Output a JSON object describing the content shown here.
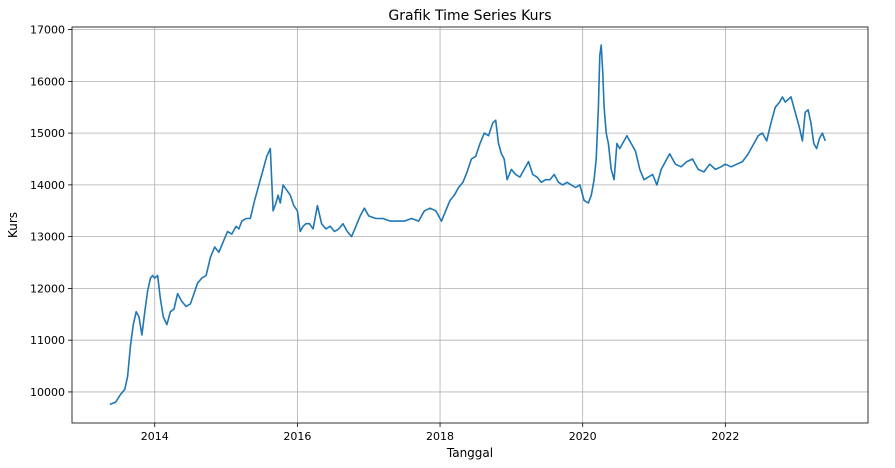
{
  "chart_data": {
    "type": "line",
    "title": "Grafik Time Series Kurs",
    "xlabel": "Tanggal",
    "ylabel": "Kurs",
    "xlim": [
      2012.84,
      2024.0
    ],
    "ylim": [
      9400,
      17050
    ],
    "x_ticks": [
      2014,
      2016,
      2018,
      2020,
      2022
    ],
    "x_tick_labels": [
      "2014",
      "2016",
      "2018",
      "2020",
      "2022"
    ],
    "y_ticks": [
      10000,
      11000,
      12000,
      13000,
      14000,
      15000,
      16000,
      17000
    ],
    "y_tick_labels": [
      "10000",
      "11000",
      "12000",
      "13000",
      "14000",
      "15000",
      "16000",
      "17000"
    ],
    "grid": true,
    "series_color": "#1f77b4",
    "series": [
      {
        "x": [
          2013.37,
          2013.45,
          2013.52,
          2013.58,
          2013.62,
          2013.66,
          2013.7,
          2013.74,
          2013.78,
          2013.82,
          2013.86,
          2013.9,
          2013.94,
          2013.97,
          2014.0,
          2014.04,
          2014.08,
          2014.12,
          2014.17,
          2014.22,
          2014.27,
          2014.32,
          2014.38,
          2014.44,
          2014.5,
          2014.55,
          2014.6,
          2014.66,
          2014.72,
          2014.78,
          2014.84,
          2014.9,
          2014.96,
          2015.02,
          2015.08,
          2015.14,
          2015.18,
          2015.22,
          2015.28,
          2015.34,
          2015.4,
          2015.46,
          2015.52,
          2015.57,
          2015.62,
          2015.66,
          2015.7,
          2015.73,
          2015.76,
          2015.8,
          2015.85,
          2015.9,
          2015.95,
          2016.0,
          2016.04,
          2016.08,
          2016.12,
          2016.17,
          2016.22,
          2016.28,
          2016.34,
          2016.4,
          2016.46,
          2016.52,
          2016.58,
          2016.64,
          2016.7,
          2016.76,
          2016.82,
          2016.88,
          2016.94,
          2017.0,
          2017.1,
          2017.2,
          2017.3,
          2017.4,
          2017.5,
          2017.6,
          2017.7,
          2017.78,
          2017.86,
          2017.94,
          2018.02,
          2018.08,
          2018.14,
          2018.2,
          2018.26,
          2018.32,
          2018.38,
          2018.44,
          2018.5,
          2018.56,
          2018.62,
          2018.68,
          2018.74,
          2018.78,
          2018.82,
          2018.86,
          2018.9,
          2018.94,
          2019.0,
          2019.06,
          2019.12,
          2019.18,
          2019.24,
          2019.3,
          2019.36,
          2019.42,
          2019.48,
          2019.54,
          2019.6,
          2019.66,
          2019.72,
          2019.78,
          2019.84,
          2019.9,
          2019.96,
          2020.02,
          2020.08,
          2020.12,
          2020.16,
          2020.19,
          2020.22,
          2020.24,
          2020.26,
          2020.28,
          2020.3,
          2020.33,
          2020.36,
          2020.4,
          2020.44,
          2020.48,
          2020.52,
          2020.56,
          2020.62,
          2020.68,
          2020.74,
          2020.8,
          2020.86,
          2020.92,
          2020.98,
          2021.04,
          2021.1,
          2021.16,
          2021.22,
          2021.3,
          2021.38,
          2021.46,
          2021.54,
          2021.62,
          2021.7,
          2021.78,
          2021.86,
          2021.94,
          2022.0,
          2022.08,
          2022.16,
          2022.24,
          2022.32,
          2022.4,
          2022.46,
          2022.52,
          2022.58,
          2022.64,
          2022.7,
          2022.76,
          2022.8,
          2022.84,
          2022.88,
          2022.92,
          2022.96,
          2023.0,
          2023.04,
          2023.08,
          2023.12,
          2023.16,
          2023.2,
          2023.24,
          2023.28,
          2023.32,
          2023.36,
          2023.4
        ],
        "y": [
          9760,
          9800,
          9950,
          10050,
          10300,
          10900,
          11300,
          11550,
          11450,
          11100,
          11550,
          11950,
          12200,
          12250,
          12200,
          12250,
          11800,
          11450,
          11300,
          11550,
          11600,
          11900,
          11750,
          11650,
          11700,
          11900,
          12100,
          12200,
          12250,
          12600,
          12800,
          12700,
          12900,
          13100,
          13050,
          13200,
          13150,
          13300,
          13350,
          13350,
          13700,
          14000,
          14300,
          14550,
          14700,
          13500,
          13650,
          13800,
          13650,
          14000,
          13900,
          13800,
          13600,
          13500,
          13100,
          13200,
          13250,
          13250,
          13150,
          13600,
          13250,
          13150,
          13200,
          13100,
          13150,
          13250,
          13100,
          13000,
          13200,
          13400,
          13550,
          13400,
          13350,
          13350,
          13300,
          13300,
          13300,
          13350,
          13300,
          13500,
          13550,
          13500,
          13300,
          13500,
          13700,
          13800,
          13950,
          14050,
          14250,
          14500,
          14550,
          14800,
          15000,
          14950,
          15200,
          15250,
          14800,
          14600,
          14500,
          14100,
          14300,
          14200,
          14150,
          14300,
          14450,
          14200,
          14150,
          14050,
          14100,
          14100,
          14200,
          14050,
          14000,
          14050,
          14000,
          13950,
          14000,
          13700,
          13650,
          13800,
          14100,
          14500,
          15500,
          16500,
          16700,
          16200,
          15500,
          15000,
          14800,
          14300,
          14100,
          14800,
          14700,
          14800,
          14950,
          14800,
          14650,
          14300,
          14100,
          14150,
          14200,
          14000,
          14300,
          14450,
          14600,
          14400,
          14350,
          14450,
          14500,
          14300,
          14250,
          14400,
          14300,
          14350,
          14400,
          14350,
          14400,
          14450,
          14600,
          14800,
          14950,
          15000,
          14850,
          15200,
          15500,
          15600,
          15700,
          15600,
          15650,
          15700,
          15500,
          15300,
          15100,
          14850,
          15400,
          15450,
          15200,
          14800,
          14700,
          14900,
          15000,
          14850
        ]
      }
    ]
  }
}
